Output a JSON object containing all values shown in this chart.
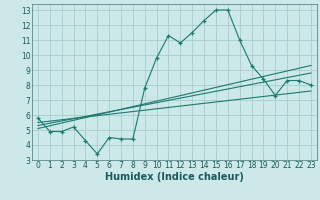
{
  "title": "",
  "xlabel": "Humidex (Indice chaleur)",
  "ylabel": "",
  "bg_color": "#cce8e8",
  "grid_color": "#aacccc",
  "line_color": "#1a7a6e",
  "xlim": [
    -0.5,
    23.5
  ],
  "ylim": [
    3,
    13.4
  ],
  "xticks": [
    0,
    1,
    2,
    3,
    4,
    5,
    6,
    7,
    8,
    9,
    10,
    11,
    12,
    13,
    14,
    15,
    16,
    17,
    18,
    19,
    20,
    21,
    22,
    23
  ],
  "yticks": [
    3,
    4,
    5,
    6,
    7,
    8,
    9,
    10,
    11,
    12,
    13
  ],
  "main_x": [
    0,
    1,
    2,
    3,
    4,
    5,
    6,
    7,
    8,
    9,
    10,
    11,
    12,
    13,
    14,
    15,
    16,
    17,
    18,
    19,
    20,
    21,
    22,
    23
  ],
  "main_y": [
    5.8,
    4.9,
    4.9,
    5.2,
    4.3,
    3.4,
    4.5,
    4.4,
    4.4,
    7.8,
    9.8,
    11.3,
    10.8,
    11.5,
    12.3,
    13.0,
    13.0,
    11.0,
    9.3,
    8.4,
    7.3,
    8.3,
    8.3,
    8.0
  ],
  "line1_x": [
    0,
    23
  ],
  "line1_y": [
    5.5,
    7.6
  ],
  "line2_x": [
    0,
    23
  ],
  "line2_y": [
    5.3,
    8.8
  ],
  "line3_x": [
    0,
    23
  ],
  "line3_y": [
    5.1,
    9.3
  ],
  "tick_fontsize": 5.5,
  "xlabel_fontsize": 7
}
